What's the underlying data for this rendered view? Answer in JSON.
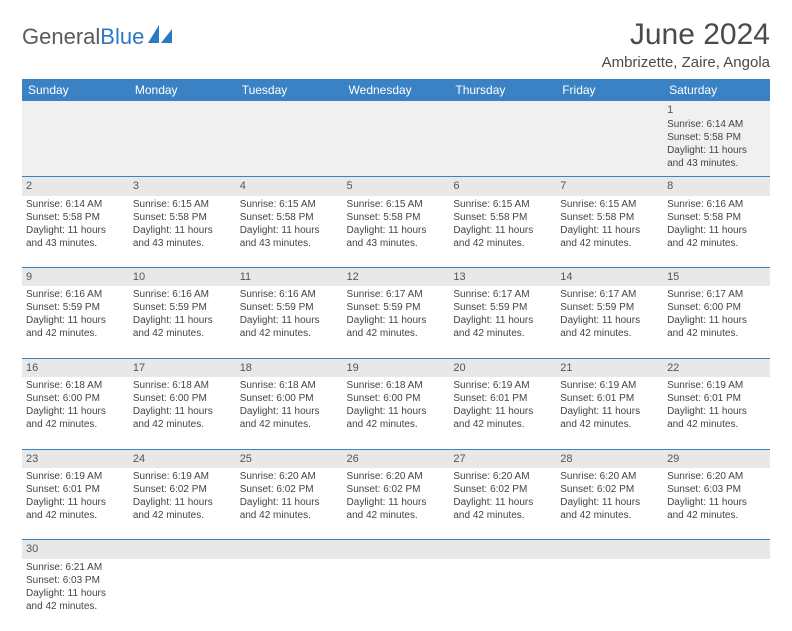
{
  "logo": {
    "textDark": "General",
    "textBlue": "Blue"
  },
  "title": "June 2024",
  "location": "Ambrizette, Zaire, Angola",
  "colors": {
    "headerBg": "#3b82c4",
    "headerText": "#ffffff",
    "dayNumBg": "#e8e8e8",
    "border": "#3b82c4"
  },
  "dayHeaders": [
    "Sunday",
    "Monday",
    "Tuesday",
    "Wednesday",
    "Thursday",
    "Friday",
    "Saturday"
  ],
  "weeks": [
    [
      null,
      null,
      null,
      null,
      null,
      null,
      {
        "n": "1",
        "sr": "Sunrise: 6:14 AM",
        "ss": "Sunset: 5:58 PM",
        "dl": "Daylight: 11 hours and 43 minutes."
      }
    ],
    [
      {
        "n": "2",
        "sr": "Sunrise: 6:14 AM",
        "ss": "Sunset: 5:58 PM",
        "dl": "Daylight: 11 hours and 43 minutes."
      },
      {
        "n": "3",
        "sr": "Sunrise: 6:15 AM",
        "ss": "Sunset: 5:58 PM",
        "dl": "Daylight: 11 hours and 43 minutes."
      },
      {
        "n": "4",
        "sr": "Sunrise: 6:15 AM",
        "ss": "Sunset: 5:58 PM",
        "dl": "Daylight: 11 hours and 43 minutes."
      },
      {
        "n": "5",
        "sr": "Sunrise: 6:15 AM",
        "ss": "Sunset: 5:58 PM",
        "dl": "Daylight: 11 hours and 43 minutes."
      },
      {
        "n": "6",
        "sr": "Sunrise: 6:15 AM",
        "ss": "Sunset: 5:58 PM",
        "dl": "Daylight: 11 hours and 42 minutes."
      },
      {
        "n": "7",
        "sr": "Sunrise: 6:15 AM",
        "ss": "Sunset: 5:58 PM",
        "dl": "Daylight: 11 hours and 42 minutes."
      },
      {
        "n": "8",
        "sr": "Sunrise: 6:16 AM",
        "ss": "Sunset: 5:58 PM",
        "dl": "Daylight: 11 hours and 42 minutes."
      }
    ],
    [
      {
        "n": "9",
        "sr": "Sunrise: 6:16 AM",
        "ss": "Sunset: 5:59 PM",
        "dl": "Daylight: 11 hours and 42 minutes."
      },
      {
        "n": "10",
        "sr": "Sunrise: 6:16 AM",
        "ss": "Sunset: 5:59 PM",
        "dl": "Daylight: 11 hours and 42 minutes."
      },
      {
        "n": "11",
        "sr": "Sunrise: 6:16 AM",
        "ss": "Sunset: 5:59 PM",
        "dl": "Daylight: 11 hours and 42 minutes."
      },
      {
        "n": "12",
        "sr": "Sunrise: 6:17 AM",
        "ss": "Sunset: 5:59 PM",
        "dl": "Daylight: 11 hours and 42 minutes."
      },
      {
        "n": "13",
        "sr": "Sunrise: 6:17 AM",
        "ss": "Sunset: 5:59 PM",
        "dl": "Daylight: 11 hours and 42 minutes."
      },
      {
        "n": "14",
        "sr": "Sunrise: 6:17 AM",
        "ss": "Sunset: 5:59 PM",
        "dl": "Daylight: 11 hours and 42 minutes."
      },
      {
        "n": "15",
        "sr": "Sunrise: 6:17 AM",
        "ss": "Sunset: 6:00 PM",
        "dl": "Daylight: 11 hours and 42 minutes."
      }
    ],
    [
      {
        "n": "16",
        "sr": "Sunrise: 6:18 AM",
        "ss": "Sunset: 6:00 PM",
        "dl": "Daylight: 11 hours and 42 minutes."
      },
      {
        "n": "17",
        "sr": "Sunrise: 6:18 AM",
        "ss": "Sunset: 6:00 PM",
        "dl": "Daylight: 11 hours and 42 minutes."
      },
      {
        "n": "18",
        "sr": "Sunrise: 6:18 AM",
        "ss": "Sunset: 6:00 PM",
        "dl": "Daylight: 11 hours and 42 minutes."
      },
      {
        "n": "19",
        "sr": "Sunrise: 6:18 AM",
        "ss": "Sunset: 6:00 PM",
        "dl": "Daylight: 11 hours and 42 minutes."
      },
      {
        "n": "20",
        "sr": "Sunrise: 6:19 AM",
        "ss": "Sunset: 6:01 PM",
        "dl": "Daylight: 11 hours and 42 minutes."
      },
      {
        "n": "21",
        "sr": "Sunrise: 6:19 AM",
        "ss": "Sunset: 6:01 PM",
        "dl": "Daylight: 11 hours and 42 minutes."
      },
      {
        "n": "22",
        "sr": "Sunrise: 6:19 AM",
        "ss": "Sunset: 6:01 PM",
        "dl": "Daylight: 11 hours and 42 minutes."
      }
    ],
    [
      {
        "n": "23",
        "sr": "Sunrise: 6:19 AM",
        "ss": "Sunset: 6:01 PM",
        "dl": "Daylight: 11 hours and 42 minutes."
      },
      {
        "n": "24",
        "sr": "Sunrise: 6:19 AM",
        "ss": "Sunset: 6:02 PM",
        "dl": "Daylight: 11 hours and 42 minutes."
      },
      {
        "n": "25",
        "sr": "Sunrise: 6:20 AM",
        "ss": "Sunset: 6:02 PM",
        "dl": "Daylight: 11 hours and 42 minutes."
      },
      {
        "n": "26",
        "sr": "Sunrise: 6:20 AM",
        "ss": "Sunset: 6:02 PM",
        "dl": "Daylight: 11 hours and 42 minutes."
      },
      {
        "n": "27",
        "sr": "Sunrise: 6:20 AM",
        "ss": "Sunset: 6:02 PM",
        "dl": "Daylight: 11 hours and 42 minutes."
      },
      {
        "n": "28",
        "sr": "Sunrise: 6:20 AM",
        "ss": "Sunset: 6:02 PM",
        "dl": "Daylight: 11 hours and 42 minutes."
      },
      {
        "n": "29",
        "sr": "Sunrise: 6:20 AM",
        "ss": "Sunset: 6:03 PM",
        "dl": "Daylight: 11 hours and 42 minutes."
      }
    ],
    [
      {
        "n": "30",
        "sr": "Sunrise: 6:21 AM",
        "ss": "Sunset: 6:03 PM",
        "dl": "Daylight: 11 hours and 42 minutes."
      },
      null,
      null,
      null,
      null,
      null,
      null
    ]
  ]
}
